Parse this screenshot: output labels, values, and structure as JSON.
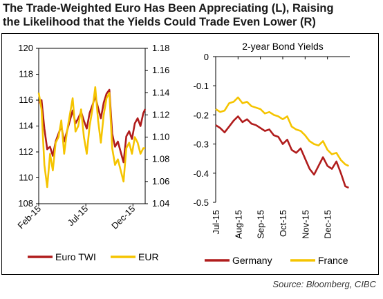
{
  "title": {
    "line1": "The Trade-Weighted Euro Has Been Appreciating (L), Raising",
    "line2": "the Likelihood that the Yields Could Trade Even Lower (R)"
  },
  "source": "Source: Bloomberg, CIBC",
  "chart_data": [
    {
      "type": "line",
      "title": "",
      "x_tick_labels": [
        "Feb-15",
        "Jul-15",
        "Dec-15"
      ],
      "x_tick_positions": [
        0,
        5,
        10
      ],
      "y_left": {
        "label": "",
        "ylim": [
          108,
          120
        ],
        "ticks": [
          "108",
          "110",
          "112",
          "114",
          "116",
          "118",
          "120"
        ]
      },
      "y_right": {
        "label": "",
        "ylim": [
          1.04,
          1.18
        ],
        "ticks": [
          "1.04",
          "1.06",
          "1.08",
          "1.10",
          "1.12",
          "1.14",
          "1.16",
          "1.18"
        ]
      },
      "legend_position": "bottom",
      "series": [
        {
          "name": "Euro TWI",
          "axis": "left",
          "color": "#b01c1c",
          "x": [
            0,
            0.3,
            0.6,
            0.9,
            1.2,
            1.5,
            1.8,
            2.1,
            2.4,
            2.7,
            3.0,
            3.3,
            3.6,
            3.9,
            4.2,
            4.5,
            4.8,
            5.1,
            5.4,
            5.7,
            6.0,
            6.3,
            6.6,
            6.9,
            7.2,
            7.5,
            7.8,
            8.1,
            8.4,
            8.7,
            9.0,
            9.3,
            9.6,
            9.9,
            10.2,
            10.5,
            10.8,
            11.1,
            11.3
          ],
          "values": [
            115.8,
            116.0,
            113.8,
            112.2,
            112.4,
            111.7,
            112.8,
            113.4,
            114.0,
            112.8,
            113.6,
            114.4,
            115.2,
            114.2,
            114.6,
            115.1,
            114.4,
            113.8,
            115.0,
            115.6,
            116.3,
            115.4,
            114.6,
            115.8,
            116.5,
            116.8,
            113.4,
            112.4,
            112.8,
            112.0,
            111.2,
            113.2,
            113.6,
            113.0,
            114.2,
            114.6,
            114.0,
            115.0,
            115.3
          ]
        },
        {
          "name": "EUR",
          "axis": "right",
          "color": "#f5c400",
          "x": [
            0,
            0.3,
            0.6,
            0.9,
            1.2,
            1.5,
            1.8,
            2.1,
            2.4,
            2.7,
            3.0,
            3.3,
            3.6,
            3.9,
            4.2,
            4.5,
            4.8,
            5.1,
            5.4,
            5.7,
            6.0,
            6.3,
            6.6,
            6.9,
            7.2,
            7.5,
            7.8,
            8.1,
            8.4,
            8.7,
            9.0,
            9.3,
            9.6,
            9.9,
            10.2,
            10.5,
            10.8,
            11.1,
            11.3
          ],
          "values": [
            1.14,
            1.125,
            1.075,
            1.055,
            1.085,
            1.07,
            1.095,
            1.1,
            1.115,
            1.085,
            1.105,
            1.12,
            1.135,
            1.105,
            1.11,
            1.125,
            1.1,
            1.085,
            1.11,
            1.125,
            1.145,
            1.115,
            1.095,
            1.12,
            1.135,
            1.14,
            1.09,
            1.075,
            1.08,
            1.07,
            1.06,
            1.09,
            1.095,
            1.085,
            1.1,
            1.095,
            1.085,
            1.09,
            1.09
          ]
        }
      ]
    },
    {
      "type": "line",
      "title": "2-year Bond Yields",
      "x_tick_labels": [
        "Jul-15",
        "Aug-15",
        "Sep-15",
        "Oct-15",
        "Nov-15",
        "Dec-15"
      ],
      "x_tick_positions": [
        0,
        1,
        2,
        3,
        4,
        5
      ],
      "y": {
        "label": "",
        "ylim": [
          -0.5,
          0
        ],
        "ticks": [
          "-0.5",
          "-0.4",
          "-0.3",
          "-0.2",
          "-0.1",
          "0"
        ]
      },
      "legend_position": "bottom",
      "series": [
        {
          "name": "Germany",
          "color": "#b01c1c",
          "x": [
            0,
            0.2,
            0.4,
            0.6,
            0.8,
            1.0,
            1.2,
            1.4,
            1.6,
            1.8,
            2.0,
            2.2,
            2.4,
            2.6,
            2.8,
            3.0,
            3.2,
            3.4,
            3.6,
            3.8,
            4.0,
            4.2,
            4.4,
            4.6,
            4.8,
            5.0,
            5.2,
            5.4,
            5.6,
            5.8,
            5.95
          ],
          "values": [
            -0.235,
            -0.245,
            -0.26,
            -0.24,
            -0.22,
            -0.205,
            -0.225,
            -0.215,
            -0.23,
            -0.235,
            -0.245,
            -0.255,
            -0.25,
            -0.27,
            -0.275,
            -0.3,
            -0.285,
            -0.32,
            -0.33,
            -0.315,
            -0.35,
            -0.385,
            -0.405,
            -0.375,
            -0.345,
            -0.375,
            -0.385,
            -0.36,
            -0.4,
            -0.445,
            -0.45
          ]
        },
        {
          "name": "France",
          "color": "#f5c400",
          "x": [
            0,
            0.2,
            0.4,
            0.6,
            0.8,
            1.0,
            1.2,
            1.4,
            1.6,
            1.8,
            2.0,
            2.2,
            2.4,
            2.6,
            2.8,
            3.0,
            3.2,
            3.4,
            3.6,
            3.8,
            4.0,
            4.2,
            4.4,
            4.6,
            4.8,
            5.0,
            5.2,
            5.4,
            5.6,
            5.8,
            5.95
          ],
          "values": [
            -0.18,
            -0.19,
            -0.185,
            -0.16,
            -0.155,
            -0.14,
            -0.16,
            -0.155,
            -0.17,
            -0.175,
            -0.18,
            -0.195,
            -0.19,
            -0.2,
            -0.205,
            -0.215,
            -0.205,
            -0.24,
            -0.25,
            -0.255,
            -0.27,
            -0.29,
            -0.3,
            -0.305,
            -0.29,
            -0.32,
            -0.335,
            -0.33,
            -0.355,
            -0.37,
            -0.375
          ]
        }
      ]
    }
  ]
}
